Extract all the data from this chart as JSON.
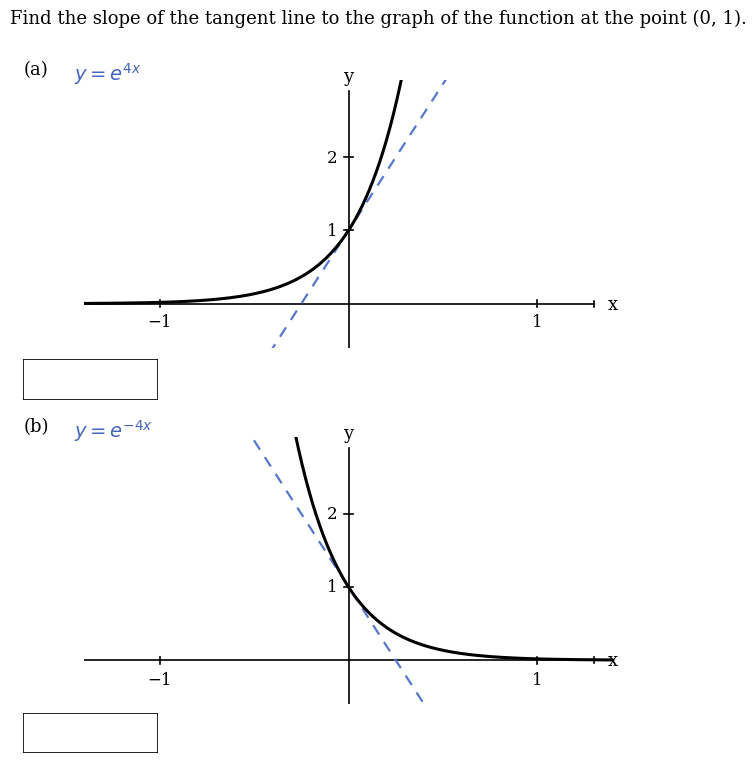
{
  "title_text": "Find the slope of the tangent line to the graph of the function at the point (0, 1).",
  "part_a_label": "(a)",
  "part_b_label": "(b)",
  "xlim": [
    -1.4,
    1.3
  ],
  "ylim_a": [
    -0.6,
    2.9
  ],
  "ylim_b": [
    -0.6,
    2.9
  ],
  "xticks": [
    -1,
    1
  ],
  "yticks_a": [
    1,
    2
  ],
  "yticks_b": [
    1,
    2
  ],
  "slope_a": 4,
  "slope_b": -4,
  "curve_color": "#000000",
  "tangent_color": "#5577cc",
  "axis_color": "#000000",
  "background_color": "#ffffff",
  "text_color": "#000000",
  "label_color_ab": "#000000",
  "func_color_ab": "#4466bb",
  "title_fontsize": 13,
  "label_fontsize": 13,
  "tick_fontsize": 12,
  "axis_label_fontsize": 13
}
